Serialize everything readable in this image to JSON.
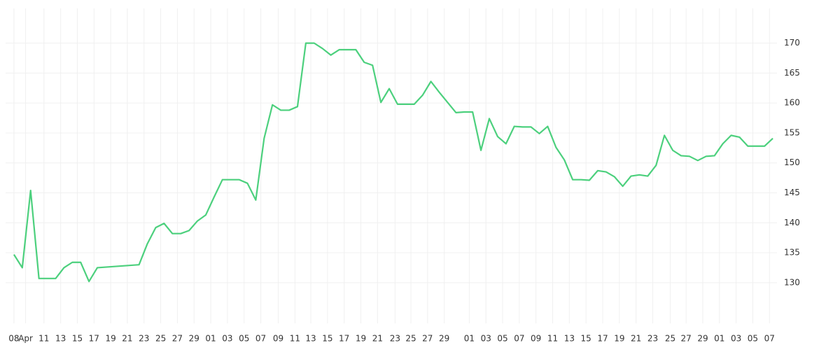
{
  "chart_data": {
    "type": "line",
    "x": [
      0,
      1,
      2,
      3,
      4,
      5,
      6,
      7,
      8,
      9,
      10,
      15,
      16,
      17,
      18,
      19,
      20,
      21,
      22,
      23,
      24,
      25,
      26,
      27,
      28,
      29,
      30,
      31,
      32,
      33,
      34,
      35,
      36,
      37,
      38,
      39,
      40,
      41,
      42,
      43,
      44,
      45,
      46,
      47,
      48,
      49,
      50,
      51,
      52,
      53,
      54,
      55,
      56,
      57,
      58,
      59,
      60,
      61,
      62,
      63,
      64,
      65,
      66,
      67,
      68,
      69,
      70,
      71,
      72,
      73,
      74,
      75,
      76,
      77,
      78,
      79,
      80,
      81,
      82,
      83,
      84,
      85,
      86,
      87,
      88,
      89,
      90,
      91
    ],
    "series": [
      {
        "color": "#4cd07d",
        "values": [
          134.7,
          132.5,
          145.4,
          130.7,
          130.7,
          130.7,
          132.5,
          133.4,
          133.4,
          130.2,
          132.5,
          133.0,
          136.5,
          139.2,
          139.9,
          138.2,
          138.2,
          138.7,
          140.3,
          141.3,
          144.3,
          147.2,
          147.2,
          147.2,
          146.6,
          143.8,
          154.1,
          159.7,
          158.8,
          158.8,
          159.4,
          170.0,
          170.0,
          169.1,
          168.0,
          168.9,
          168.9,
          168.9,
          166.8,
          166.3,
          160.1,
          162.4,
          159.8,
          159.8,
          159.8,
          161.3,
          163.6,
          161.8,
          160.1,
          158.4,
          158.5,
          158.5,
          152.1,
          157.4,
          154.4,
          153.2,
          156.1,
          156.0,
          156.0,
          154.9,
          156.1,
          152.6,
          150.5,
          147.2,
          147.2,
          147.1,
          148.7,
          148.5,
          147.7,
          146.1,
          147.8,
          148.0,
          147.8,
          149.6,
          154.6,
          152.1,
          151.2,
          151.1,
          150.4,
          151.1,
          151.2,
          153.2,
          154.6,
          154.3,
          152.8,
          152.8,
          152.8,
          154.1
        ]
      }
    ],
    "xlim": [
      -1,
      91.5
    ],
    "xticks": [
      {
        "value": 0,
        "label": "08"
      },
      {
        "value": 1.4,
        "label": "Apr"
      },
      {
        "value": 3.6,
        "label": "11"
      },
      {
        "value": 5.6,
        "label": "13"
      },
      {
        "value": 7.6,
        "label": "15"
      },
      {
        "value": 9.6,
        "label": "17"
      },
      {
        "value": 11.6,
        "label": "19"
      },
      {
        "value": 13.6,
        "label": "21"
      },
      {
        "value": 15.6,
        "label": "23"
      },
      {
        "value": 17.6,
        "label": "25"
      },
      {
        "value": 19.6,
        "label": "27"
      },
      {
        "value": 21.6,
        "label": "29"
      },
      {
        "value": 23.6,
        "label": "01"
      },
      {
        "value": 25.6,
        "label": "03"
      },
      {
        "value": 27.6,
        "label": "05"
      },
      {
        "value": 29.6,
        "label": "07"
      },
      {
        "value": 31.7,
        "label": "09"
      },
      {
        "value": 33.7,
        "label": "11"
      },
      {
        "value": 35.6,
        "label": "13"
      },
      {
        "value": 37.6,
        "label": "15"
      },
      {
        "value": 39.6,
        "label": "17"
      },
      {
        "value": 41.6,
        "label": "19"
      },
      {
        "value": 43.6,
        "label": "21"
      },
      {
        "value": 45.7,
        "label": "23"
      },
      {
        "value": 47.6,
        "label": "25"
      },
      {
        "value": 49.6,
        "label": "27"
      },
      {
        "value": 51.6,
        "label": "29"
      },
      {
        "value": 54.6,
        "label": "01"
      },
      {
        "value": 56.6,
        "label": "03"
      },
      {
        "value": 58.6,
        "label": "05"
      },
      {
        "value": 60.6,
        "label": "07"
      },
      {
        "value": 62.6,
        "label": "09"
      },
      {
        "value": 64.6,
        "label": "11"
      },
      {
        "value": 66.6,
        "label": "13"
      },
      {
        "value": 68.6,
        "label": "15"
      },
      {
        "value": 70.6,
        "label": "17"
      },
      {
        "value": 72.6,
        "label": "19"
      },
      {
        "value": 74.6,
        "label": "21"
      },
      {
        "value": 76.6,
        "label": "23"
      },
      {
        "value": 78.7,
        "label": "25"
      },
      {
        "value": 80.6,
        "label": "27"
      },
      {
        "value": 82.6,
        "label": "29"
      },
      {
        "value": 84.6,
        "label": "01"
      },
      {
        "value": 86.6,
        "label": "03"
      },
      {
        "value": 88.6,
        "label": "05"
      },
      {
        "value": 90.6,
        "label": "07"
      }
    ],
    "ylim": [
      123.2,
      175.8
    ],
    "yticks": [
      130,
      135,
      140,
      145,
      150,
      155,
      160,
      165,
      170
    ],
    "grid": true
  }
}
